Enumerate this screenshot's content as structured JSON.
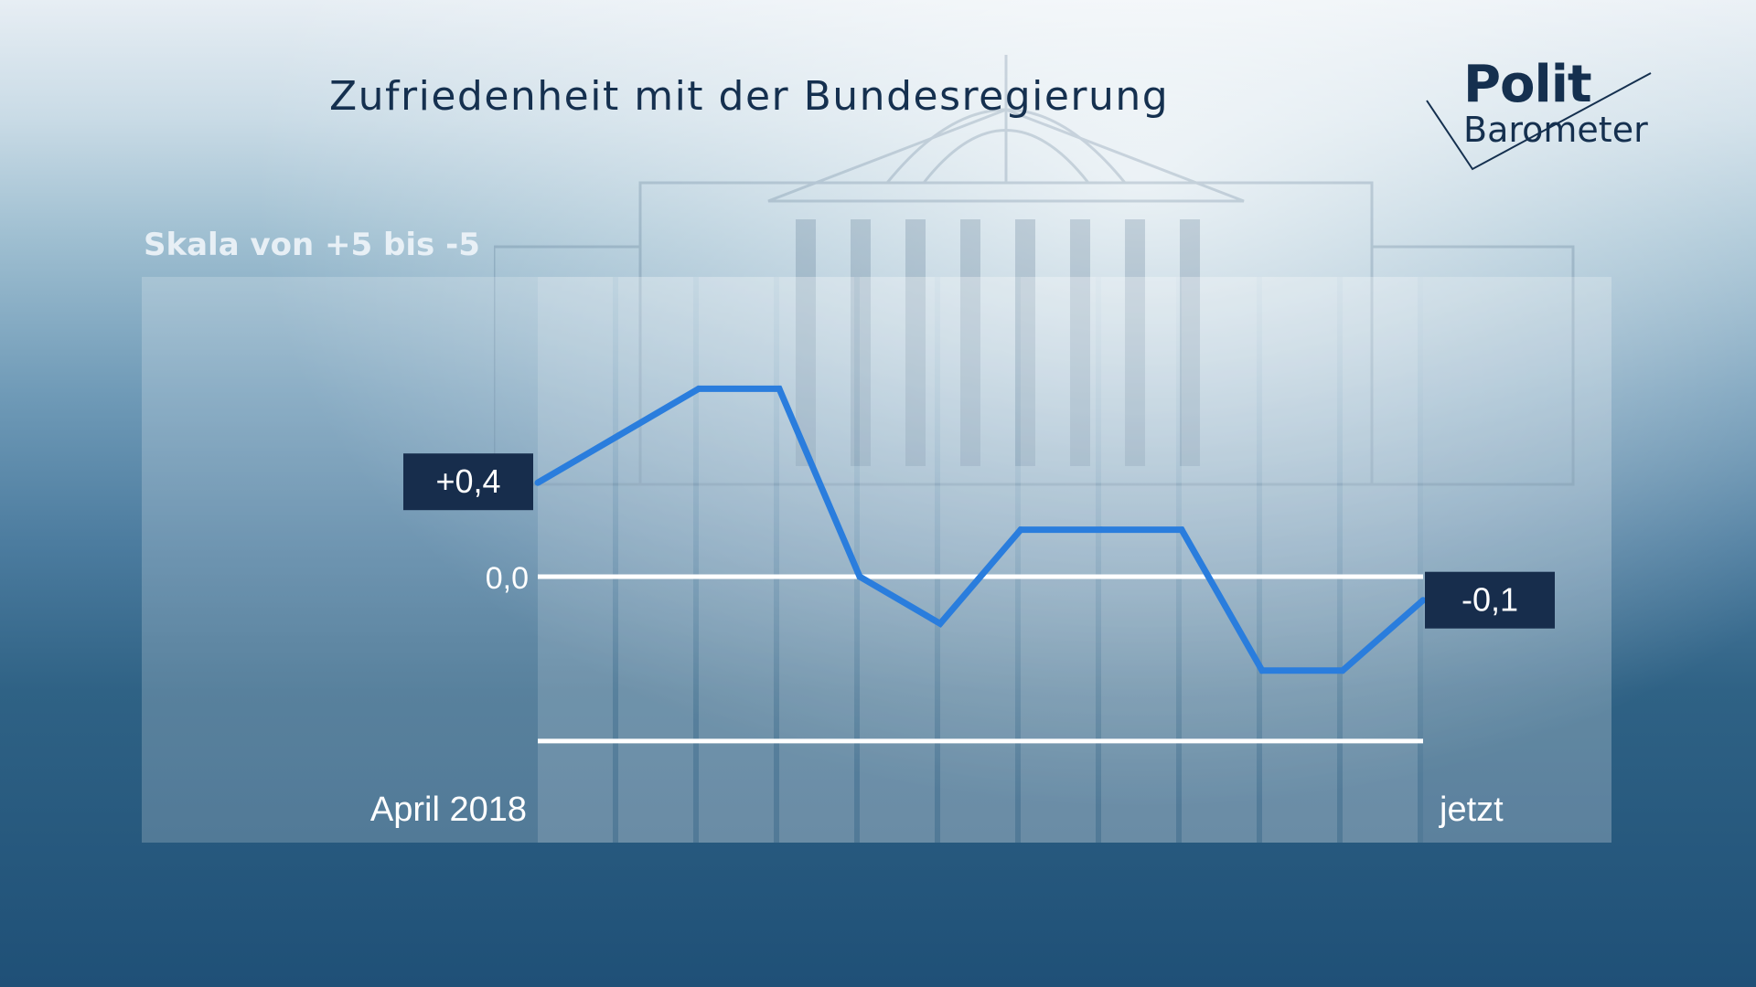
{
  "title": "Zufriedenheit mit der Bundesregierung",
  "scale_label": "Skala von +5 bis -5",
  "logo": {
    "line1": "Polit",
    "line2": "Barometer"
  },
  "colors": {
    "line": "#2a7ddd",
    "label_box": "#172d4c",
    "title": "#15304f",
    "reference_line": "#ffffff"
  },
  "chart_data": {
    "type": "line",
    "title": "Zufriedenheit mit der Bundesregierung",
    "ylabel": "Skala von +5 bis -5",
    "x_start_label": "April 2018",
    "x_end_label": "jetzt",
    "zero_label": "0,0",
    "start_value_label": "+0,4",
    "end_value_label": "-0,1",
    "values": [
      0.4,
      0.6,
      0.8,
      0.8,
      0.0,
      -0.2,
      0.2,
      0.2,
      0.2,
      -0.4,
      -0.4,
      -0.1
    ],
    "ylim": [
      -0.8,
      1.0
    ],
    "reference_lines": [
      0.0,
      -0.7
    ],
    "grid": "vertical"
  }
}
